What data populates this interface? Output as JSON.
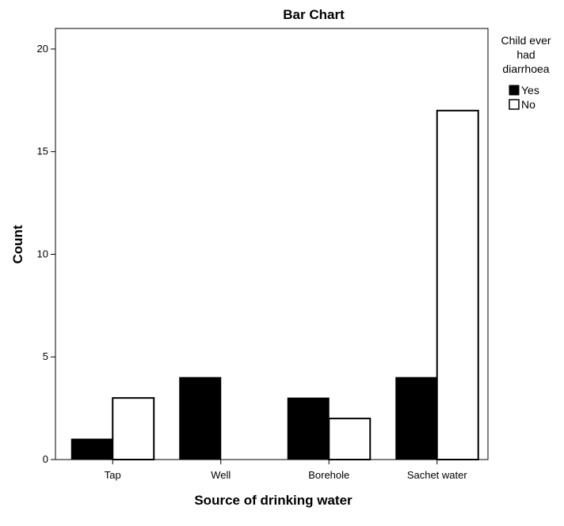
{
  "chart_data": {
    "type": "bar",
    "title": "Bar Chart",
    "xlabel": "Source of drinking water",
    "ylabel": "Count",
    "categories": [
      "Tap",
      "Well",
      "Borehole",
      "Sachet water"
    ],
    "series": [
      {
        "name": "Yes",
        "values": [
          1,
          4,
          3,
          4
        ],
        "color": "#000000"
      },
      {
        "name": "No",
        "values": [
          3,
          0,
          2,
          17
        ],
        "color": "#ffffff"
      }
    ],
    "ylim": [
      0,
      21
    ],
    "yticks": [
      0,
      5,
      10,
      15,
      20
    ],
    "grid": false,
    "legend": {
      "title_lines": [
        "Child ever",
        "had",
        "diarrhoea"
      ],
      "placement": "top-right"
    }
  }
}
